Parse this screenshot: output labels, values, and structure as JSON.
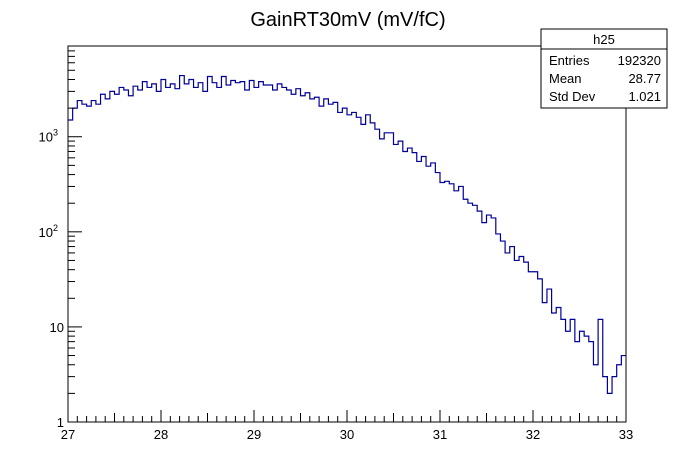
{
  "chart_data": {
    "type": "histogram",
    "title": "GainRT30mV (mV/fC)",
    "xlabel": "",
    "ylabel": "",
    "x_range": [
      27,
      33
    ],
    "y_range": [
      1,
      9000
    ],
    "y_scale": "log",
    "grid": false,
    "x_ticks": [
      "27",
      "28",
      "29",
      "30",
      "31",
      "32",
      "33"
    ],
    "y_ticks": [
      {
        "value": 1,
        "label": "1"
      },
      {
        "value": 10,
        "label": "10"
      },
      {
        "value": 100,
        "label": "10",
        "exp": "2"
      },
      {
        "value": 1000,
        "label": "10",
        "exp": "3"
      }
    ],
    "bin_edges": [
      27.0,
      33.0
    ],
    "n_bins": 120,
    "counts": [
      1500,
      2000,
      2400,
      2200,
      2100,
      2400,
      2200,
      2800,
      2500,
      3000,
      2800,
      3300,
      3100,
      2700,
      3400,
      3100,
      3800,
      3300,
      3600,
      3000,
      4000,
      3300,
      3600,
      3200,
      4400,
      3600,
      4000,
      3300,
      3700,
      3000,
      4300,
      3700,
      3300,
      4300,
      3500,
      3900,
      3700,
      3800,
      3100,
      3900,
      3300,
      3800,
      3500,
      3500,
      3100,
      3600,
      3300,
      3100,
      2800,
      3200,
      2700,
      2900,
      2500,
      2600,
      2100,
      2500,
      2200,
      2300,
      1800,
      2000,
      1700,
      1800,
      1600,
      1350,
      1700,
      1400,
      1200,
      950,
      1100,
      1100,
      830,
      900,
      700,
      760,
      680,
      550,
      620,
      490,
      530,
      420,
      330,
      340,
      320,
      270,
      300,
      220,
      200,
      190,
      165,
      125,
      150,
      140,
      95,
      80,
      60,
      70,
      50,
      55,
      48,
      38,
      38,
      32,
      18,
      25,
      14,
      16,
      12,
      9,
      12,
      7,
      9,
      8,
      7,
      4,
      12,
      3,
      2,
      3,
      4,
      5
    ],
    "stats": {
      "name": "h25",
      "rows": [
        {
          "label": "Entries",
          "value": "192320"
        },
        {
          "label": "Mean",
          "value": "28.77"
        },
        {
          "label": "Std Dev",
          "value": "1.021"
        }
      ]
    },
    "line_color": "#000099",
    "frame_color": "#000000"
  }
}
